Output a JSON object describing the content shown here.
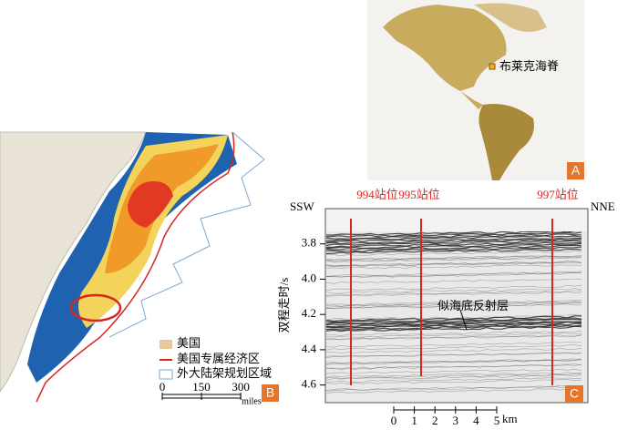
{
  "panel_a": {
    "label": "A",
    "place": "布莱克海脊"
  },
  "panel_b": {
    "label": "B",
    "legend": [
      "美国",
      "美国专属经济区",
      "外大陆架规划区域"
    ],
    "scale": {
      "ticks": [
        0,
        150,
        300
      ],
      "unit": "miles"
    }
  },
  "panel_c": {
    "label": "C",
    "left": "SSW",
    "right": "NNE",
    "stations": [
      "994站位",
      "995站位",
      "997站位"
    ],
    "annotation": "似海底反射层",
    "ylabel": "双程走时/s",
    "ylim": [
      3.6,
      4.7
    ],
    "yticks": [
      3.8,
      {
        "value": 4,
        "label": "4.0"
      },
      4.2,
      4.4,
      4.6
    ],
    "scale": {
      "ticks": [
        0,
        1,
        2,
        3,
        4,
        5
      ],
      "unit": "km"
    }
  }
}
